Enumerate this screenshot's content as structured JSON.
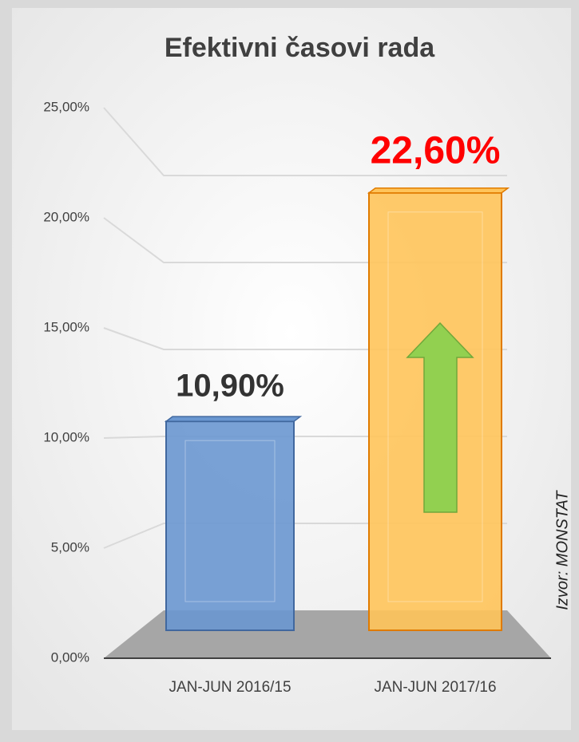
{
  "chart_data": {
    "type": "bar3d",
    "title": "Efektivni časovi rada",
    "categories": [
      "JAN-JUN 2016/15",
      "JAN-JUN 2017/16"
    ],
    "values": [
      10.9,
      22.6
    ],
    "value_labels": [
      "10,90%",
      "22,60%"
    ],
    "colors": [
      "#6a97d0",
      "#ffc45a"
    ],
    "value_label_colors": [
      "#333333",
      "#ff0000"
    ],
    "ylim": [
      0,
      25
    ],
    "yticks": [
      {
        "value": 0,
        "label": "0,00%"
      },
      {
        "value": 5,
        "label": "5,00%"
      },
      {
        "value": 10,
        "label": "10,00%"
      },
      {
        "value": 15,
        "label": "15,00%"
      },
      {
        "value": 20,
        "label": "20,00%"
      },
      {
        "value": 25,
        "label": "25,00%"
      }
    ],
    "grid": true,
    "source": "Izvor: MONSTAT"
  }
}
